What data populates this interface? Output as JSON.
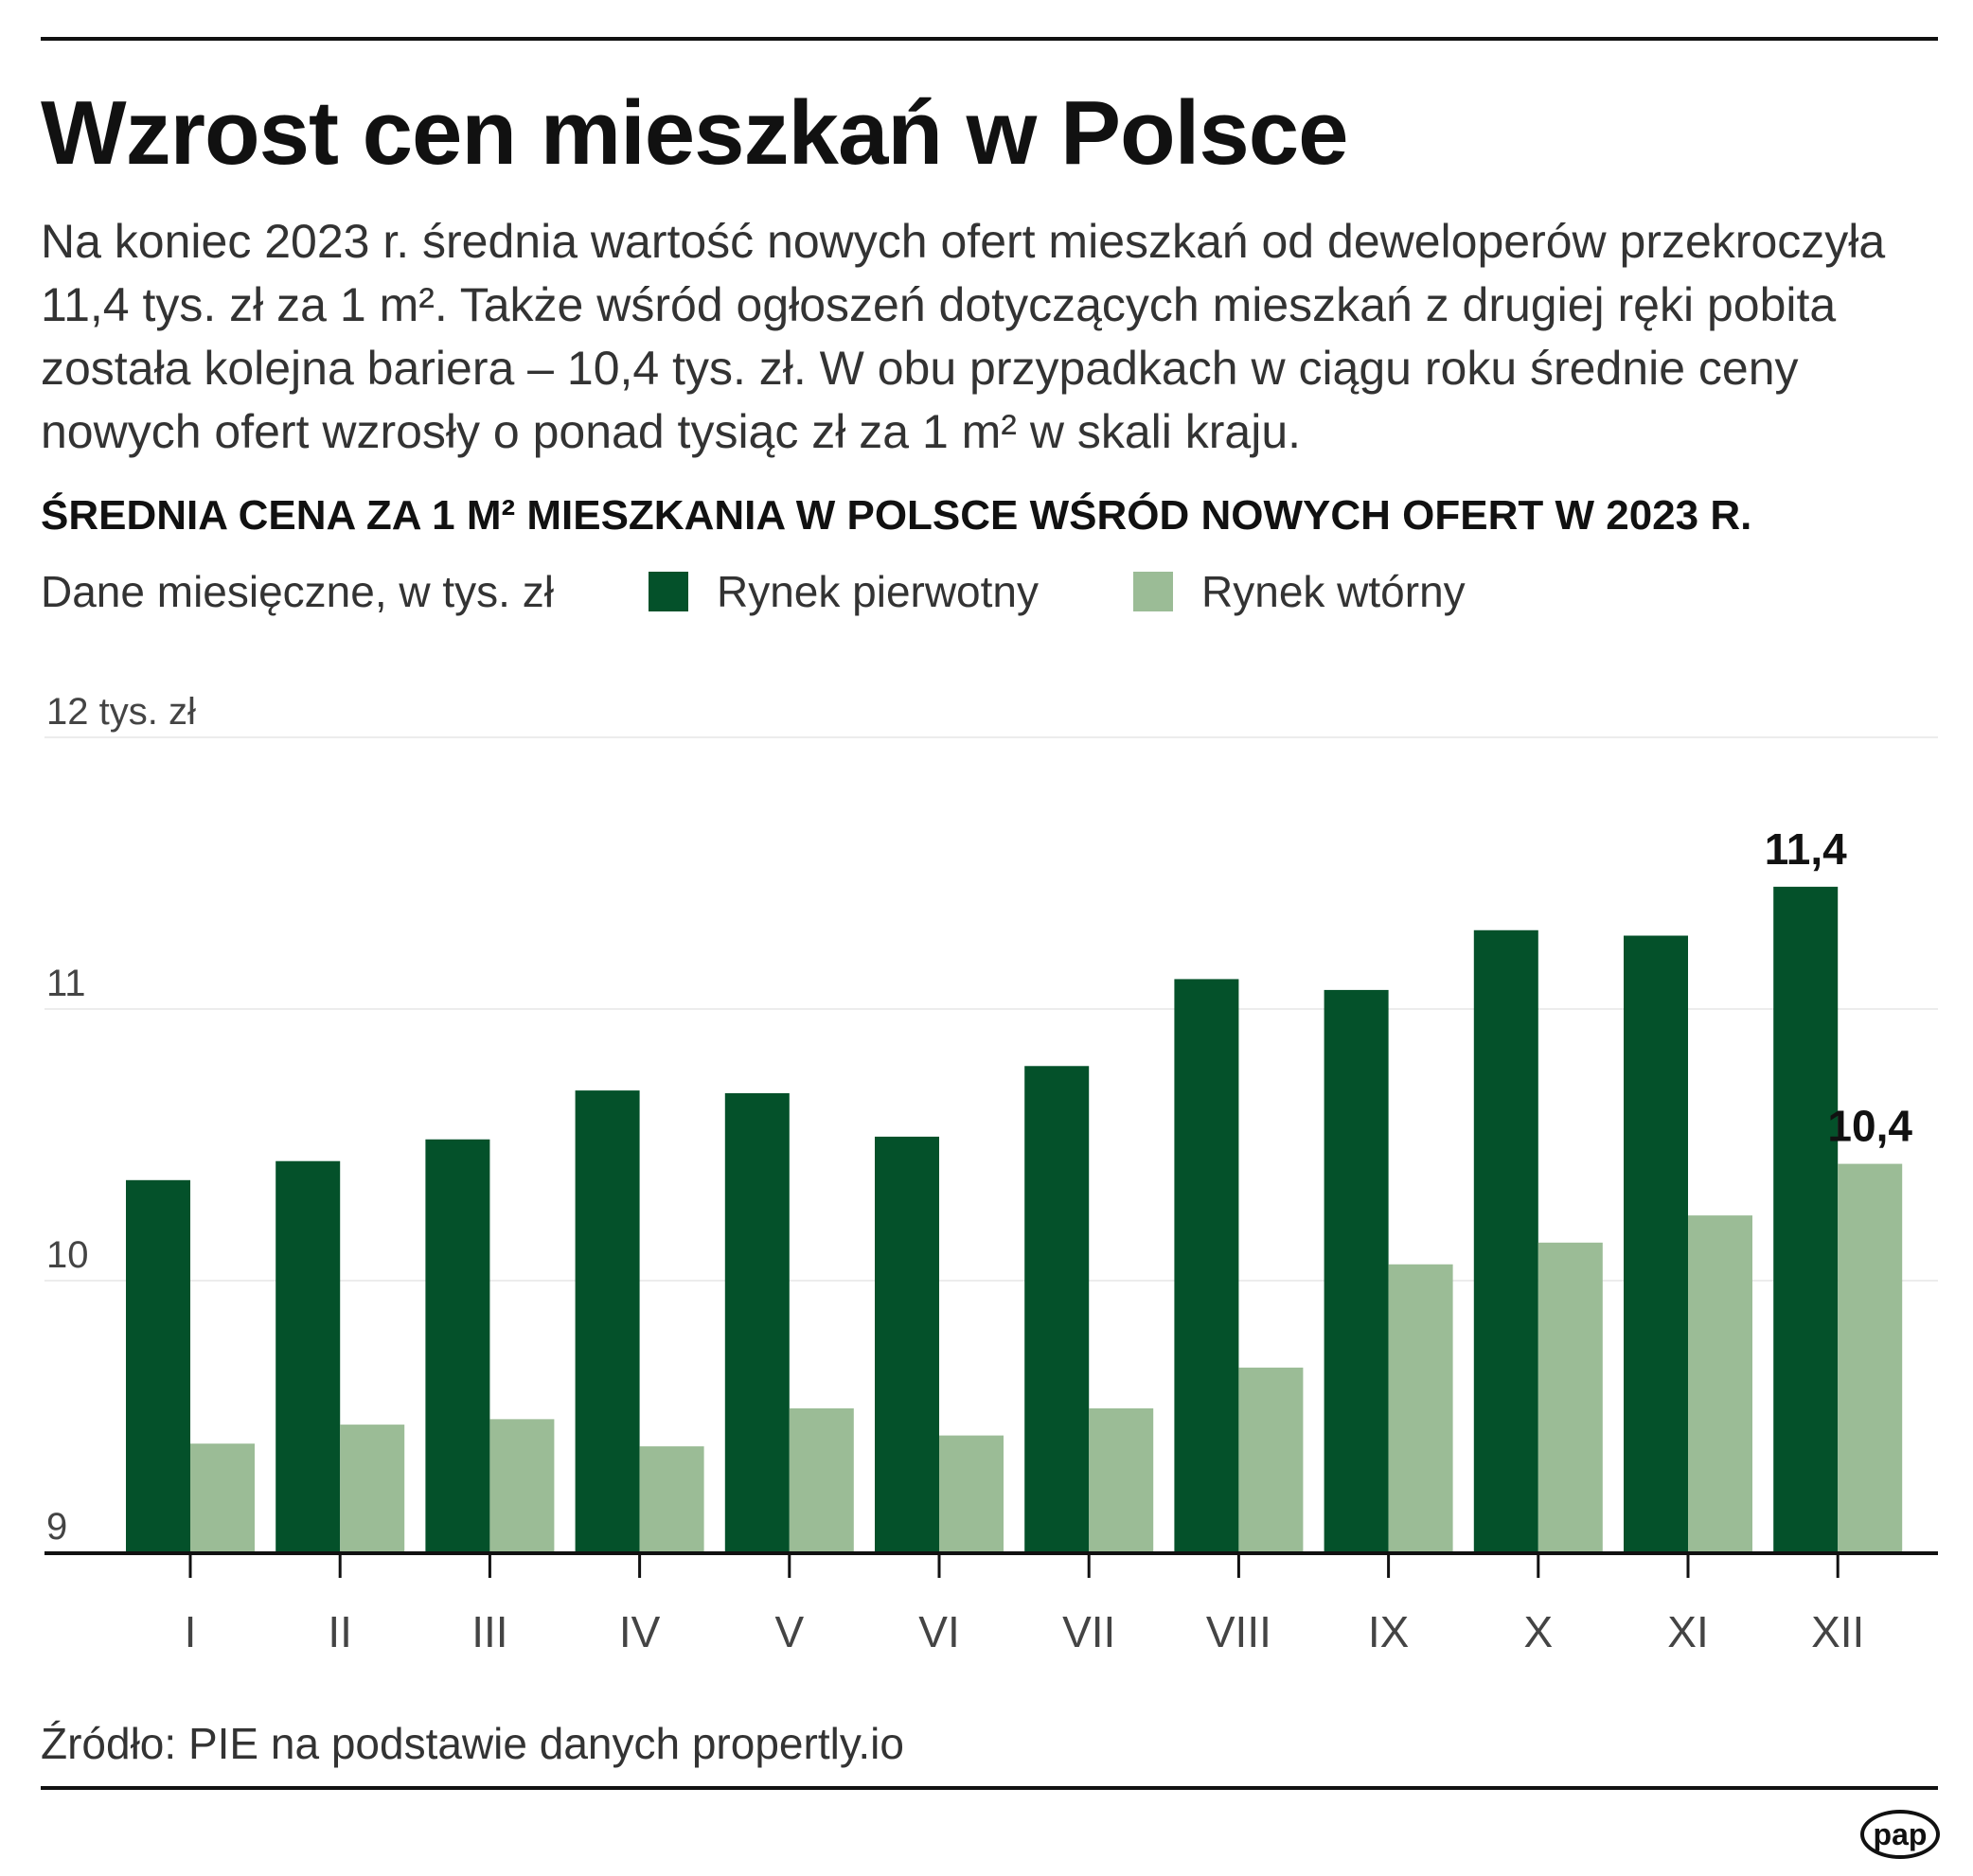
{
  "title": "Wzrost cen mieszkań w Polsce",
  "lead": "Na koniec 2023 r. średnia wartość nowych ofert mieszkań od deweloperów przekroczyła 11,4 tys. zł za 1 m². Także wśród ogłoszeń dotyczących mieszkań z drugiej ręki pobita została kolejna bariera – 10,4 tys. zł. W obu przypadkach w ciągu roku średnie ceny nowych ofert wzrosły o ponad tysiąc zł za 1 m² w skali kraju.",
  "source": "Źródło: PIE na podstawie danych propertly.io",
  "logo": "pap",
  "chart_data": {
    "type": "bar",
    "title": "ŚREDNIA CENA ZA 1 M² MIESZKANIA W POLSCE WŚRÓD NOWYCH OFERT W 2023 R.",
    "subtitle": "Dane miesięczne, w tys. zł",
    "ylabel": "12 tys. zł",
    "ylim": [
      9,
      12
    ],
    "yticks": [
      9,
      10,
      11,
      12
    ],
    "ytick_labels": [
      "9",
      "10",
      "11",
      "12 tys. zł"
    ],
    "grid": true,
    "legend": "top-left",
    "categories": [
      "I",
      "II",
      "III",
      "IV",
      "V",
      "VI",
      "VII",
      "VIII",
      "IX",
      "X",
      "XI",
      "XII"
    ],
    "series": [
      {
        "name": "Rynek pierwotny",
        "color": "#04512a",
        "values": [
          10.37,
          10.44,
          10.52,
          10.7,
          10.69,
          10.53,
          10.79,
          11.11,
          11.07,
          11.29,
          11.27,
          11.45
        ]
      },
      {
        "name": "Rynek wtórny",
        "color": "#9bbc96",
        "values": [
          9.4,
          9.47,
          9.49,
          9.39,
          9.53,
          9.43,
          9.53,
          9.68,
          10.06,
          10.14,
          10.24,
          10.43
        ]
      }
    ],
    "annotations": [
      {
        "series": 0,
        "category": "XII",
        "text": "11,4"
      },
      {
        "series": 1,
        "category": "XII",
        "text": "10,4"
      }
    ]
  }
}
